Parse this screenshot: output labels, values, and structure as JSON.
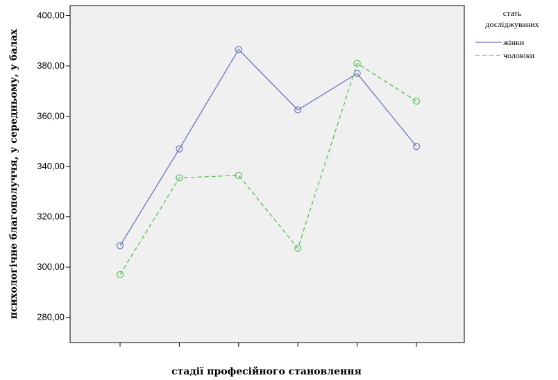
{
  "chart_data": {
    "type": "line",
    "title": "",
    "xlabel": "стадії професійного становлення",
    "ylabel": "психологічне благополуччя, у середньому, у балах",
    "categories": [
      "1",
      "2",
      "3",
      "4",
      "5",
      "6"
    ],
    "show_category_labels": false,
    "ylim": [
      270,
      404
    ],
    "yticks": [
      280,
      300,
      320,
      340,
      360,
      380,
      400
    ],
    "ytick_labels": [
      "280,00",
      "300,00",
      "320,00",
      "340,00",
      "360,00",
      "380,00",
      "400,00"
    ],
    "grid": false,
    "plot_background": "#f0f0f0",
    "legend": {
      "title_lines": [
        "стать",
        "досліджуваних"
      ],
      "placement": "right"
    },
    "series": [
      {
        "name": "жінки",
        "values": [
          308.5,
          347.0,
          386.5,
          362.5,
          377.0,
          348.0
        ],
        "color": "#6a75c0",
        "style": "solid"
      },
      {
        "name": "чоловіки",
        "values": [
          297.0,
          335.5,
          336.5,
          307.5,
          381.0,
          366.0
        ],
        "color": "#55c055",
        "style": "dashed"
      }
    ]
  }
}
